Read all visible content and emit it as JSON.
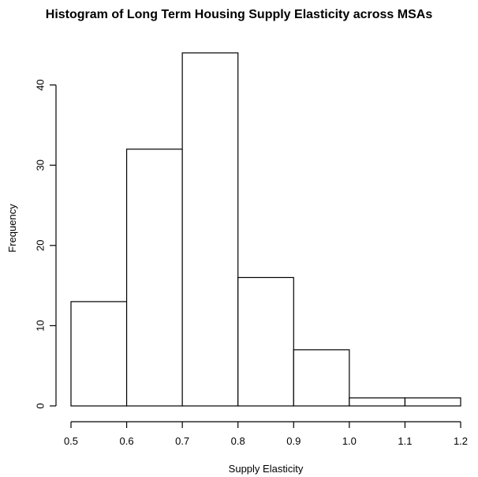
{
  "chart_data": {
    "type": "bar",
    "title": "Histogram of Long Term Housing Supply Elasticity across MSAs",
    "xlabel": "Supply Elasticity",
    "ylabel": "Frequency",
    "bins": [
      {
        "start": 0.5,
        "end": 0.6,
        "value": 13
      },
      {
        "start": 0.6,
        "end": 0.7,
        "value": 32
      },
      {
        "start": 0.7,
        "end": 0.8,
        "value": 44
      },
      {
        "start": 0.8,
        "end": 0.9,
        "value": 16
      },
      {
        "start": 0.9,
        "end": 1.0,
        "value": 7
      },
      {
        "start": 1.0,
        "end": 1.1,
        "value": 1
      },
      {
        "start": 1.1,
        "end": 1.2,
        "value": 1
      }
    ],
    "xlim": [
      0.5,
      1.2
    ],
    "ylim": [
      0,
      45
    ],
    "x_ticks": [
      0.5,
      0.6,
      0.7,
      0.8,
      0.9,
      1.0,
      1.1,
      1.2
    ],
    "x_tick_labels": [
      "0.5",
      "0.6",
      "0.7",
      "0.8",
      "0.9",
      "1.0",
      "1.1",
      "1.2"
    ],
    "y_ticks": [
      0,
      10,
      20,
      30,
      40
    ],
    "y_tick_labels": [
      "0",
      "10",
      "20",
      "30",
      "40"
    ],
    "grid": false,
    "legend": "none",
    "bar_fill": "#ffffff",
    "bar_stroke": "#000000"
  }
}
